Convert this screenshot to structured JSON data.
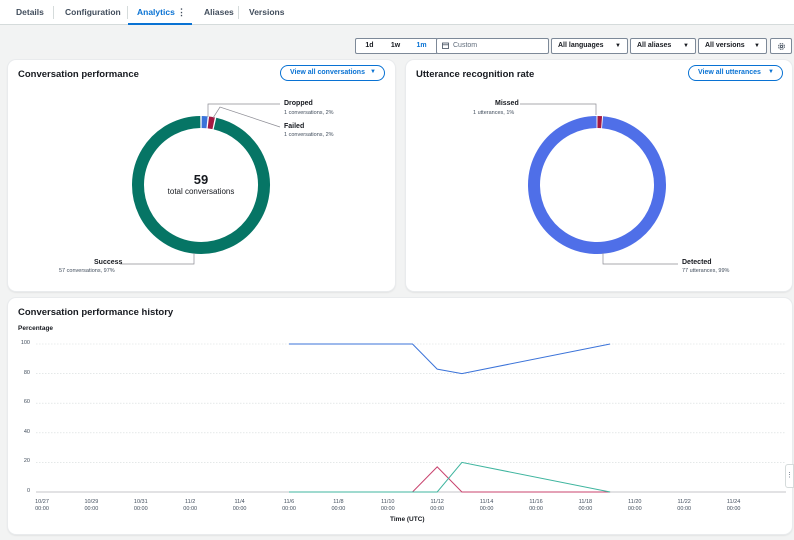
{
  "tabs": [
    {
      "label": "Details",
      "active": false
    },
    {
      "label": "Configuration",
      "active": false
    },
    {
      "label": "Analytics",
      "active": true,
      "menu_icon": "vertical-ellipsis-icon"
    },
    {
      "label": "Aliases",
      "active": false
    },
    {
      "label": "Versions",
      "active": false
    }
  ],
  "toolbar": {
    "range_options": [
      "1d",
      "1w",
      "1m"
    ],
    "range_selected": "1m",
    "custom_placeholder": "Custom",
    "languages_label": "All languages",
    "aliases_label": "All aliases",
    "versions_label": "All versions",
    "settings_icon": "gear-icon"
  },
  "conversation_performance": {
    "title": "Conversation performance",
    "button_label": "View all conversations",
    "center_value": "59",
    "center_label": "total conversations",
    "segments": [
      {
        "label": "Success",
        "detail": "57 conversations, 97%",
        "value": 57,
        "color": "#067565"
      },
      {
        "label": "Dropped",
        "detail": "1 conversations, 2%",
        "value": 1,
        "color": "#3b73d9"
      },
      {
        "label": "Failed",
        "detail": "1 conversations, 2%",
        "value": 1,
        "color": "#a31942"
      }
    ]
  },
  "utterance_recognition": {
    "title": "Utterance recognition rate",
    "button_label": "View all utterances",
    "segments": [
      {
        "label": "Detected",
        "detail": "77 utterances, 99%",
        "value": 77,
        "color": "#4f6fe8"
      },
      {
        "label": "Missed",
        "detail": "1 utterances, 1%",
        "value": 1,
        "color": "#a31942"
      }
    ]
  },
  "history": {
    "title": "Conversation performance history",
    "side_handle_icon": "drag-handle-icon"
  },
  "chart_data": {
    "type": "line",
    "ylabel": "Percentage",
    "xlabel": "Time (UTC)",
    "ylim": [
      0,
      100
    ],
    "y_ticks": [
      0,
      20,
      40,
      60,
      80,
      100
    ],
    "x_ticks": [
      {
        "label": "10/27",
        "sub": "00:00"
      },
      {
        "label": "10/29",
        "sub": "00:00"
      },
      {
        "label": "10/31",
        "sub": "00:00"
      },
      {
        "label": "11/2",
        "sub": "00:00"
      },
      {
        "label": "11/4",
        "sub": "00:00"
      },
      {
        "label": "11/6",
        "sub": "00:00"
      },
      {
        "label": "11/8",
        "sub": "00:00"
      },
      {
        "label": "11/10",
        "sub": "00:00"
      },
      {
        "label": "11/12",
        "sub": "00:00"
      },
      {
        "label": "11/14",
        "sub": "00:00"
      },
      {
        "label": "11/16",
        "sub": "00:00"
      },
      {
        "label": "11/18",
        "sub": "00:00"
      },
      {
        "label": "11/20",
        "sub": "00:00"
      },
      {
        "label": "11/22",
        "sub": "00:00"
      },
      {
        "label": "11/24",
        "sub": "00:00"
      }
    ],
    "x_dates": [
      "10/27",
      "10/29",
      "10/31",
      "11/2",
      "11/4",
      "11/6",
      "11/8",
      "11/10",
      "11/12",
      "11/14",
      "11/16",
      "11/18",
      "11/20",
      "11/22",
      "11/24"
    ],
    "grid": true,
    "series": [
      {
        "color": "#3b73d9",
        "points": [
          [
            "11/6",
            100
          ],
          [
            "11/11",
            100
          ],
          [
            "11/12",
            83
          ],
          [
            "11/13",
            80
          ],
          [
            "11/19",
            100
          ]
        ]
      },
      {
        "color": "#c8436e",
        "points": [
          [
            "11/6",
            0
          ],
          [
            "11/11",
            0
          ],
          [
            "11/12",
            17
          ],
          [
            "11/13",
            0
          ],
          [
            "11/19",
            0
          ]
        ]
      },
      {
        "color": "#3fb59f",
        "points": [
          [
            "11/6",
            0
          ],
          [
            "11/12",
            0
          ],
          [
            "11/13",
            20
          ],
          [
            "11/19",
            0
          ]
        ]
      }
    ]
  }
}
